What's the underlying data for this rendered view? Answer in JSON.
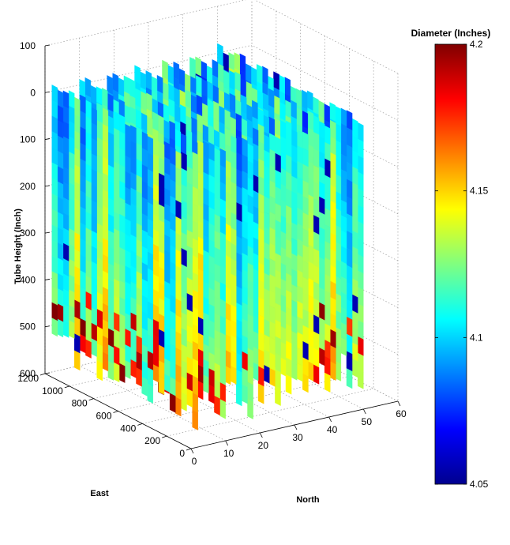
{
  "chart_data": {
    "type": "3d-slice",
    "ylabel": "Tube Height (Inch)",
    "xlabel_east": "East",
    "xlabel_north": "North",
    "height_ticks": [
      "100",
      "0",
      "100",
      "200",
      "300",
      "400",
      "500",
      "600"
    ],
    "east_ticks": [
      "0",
      "200",
      "400",
      "600",
      "800",
      "1000",
      "1200"
    ],
    "north_ticks": [
      "0",
      "10",
      "20",
      "30",
      "40",
      "50",
      "60"
    ],
    "east_range": [
      0,
      1200
    ],
    "north_range": [
      0,
      60
    ],
    "height_range": [
      -100,
      600
    ],
    "slice_north_positions": [
      2,
      10,
      18,
      26,
      34,
      42,
      50
    ],
    "colorbar": {
      "title": "Diameter (Inches)",
      "range": [
        4.05,
        4.2
      ],
      "ticks": [
        "4.05",
        "4.1",
        "4.15",
        "4.2"
      ],
      "colormap": "jet"
    },
    "grid": true
  }
}
